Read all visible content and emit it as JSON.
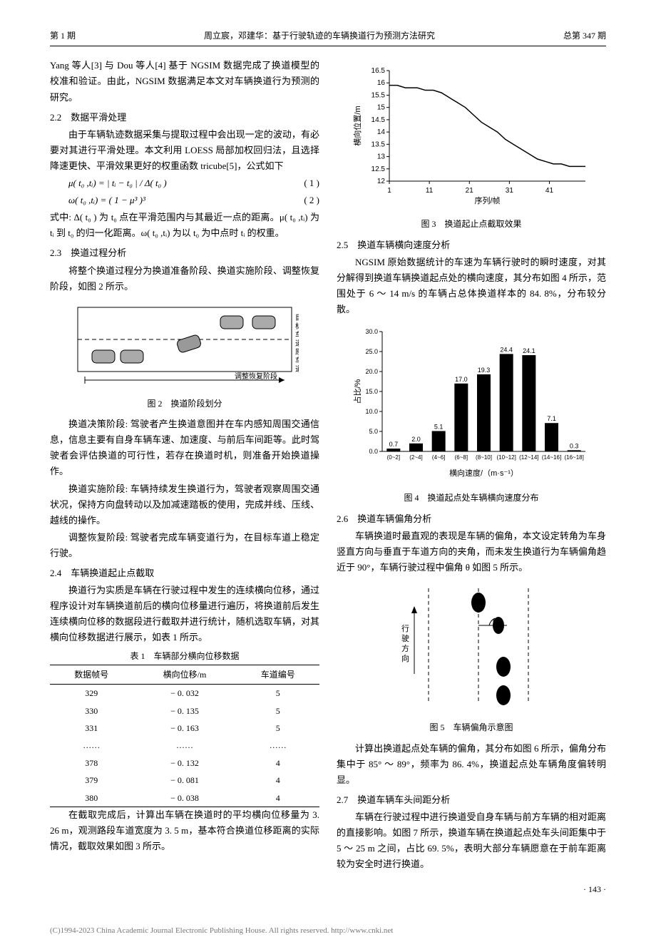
{
  "header": {
    "left": "第 1 期",
    "center": "周立宸，邓建华：基于行驶轨迹的车辆换道行为预测方法研究",
    "right": "总第 347 期"
  },
  "left_column": {
    "p1": "Yang 等人[3] 与 Dou 等人[4] 基于 NGSIM 数据完成了换道模型的校准和验证。由此，NGSIM 数据满足本文对车辆换道行为预测的研究。",
    "s22": "2.2　数据平滑处理",
    "p2": "由于车辆轨迹数据采集与提取过程中会出现一定的波动，有必要对其进行平滑处理。本文利用 LOESS 局部加权回归法，且选择降速更快、平滑效果更好的权重函数 tricube[5]，公式如下",
    "f1": "μ( t₀ ,tᵢ) = | tᵢ − t₀ | / Δ( t₀ )",
    "f1n": "( 1 )",
    "f2": "ω( t₀ ,tᵢ) = ( 1 − μ³ )³",
    "f2n": "( 2 )",
    "p3": "式中: Δ( t₀ ) 为 t₀ 点在平滑范围内与其最近一点的距离。μ( t₀ ,tᵢ) 为 tᵢ 到 t₀ 的归一化距离。ω( t₀ ,tᵢ) 为以 t₀ 为中点时 tᵢ 的权重。",
    "s23": "2.3　换道过程分析",
    "p4": "将整个换道过程分为换道准备阶段、换道实施阶段、调整恢复阶段，如图 2 所示。",
    "fig2_caption": "图 2　换道阶段划分",
    "p5": "换道决策阶段: 驾驶者产生换道意图并在车内感知周围交通信息，信息主要有自身车辆车速、加速度、与前后车间距等。此时驾驶者会评估换道的可行性，若存在换道时机，则准备开始换道操作。",
    "p6": "换道实施阶段: 车辆持续发生换道行为，驾驶者观察周围交通状况，保持方向盘转动以及加减速踏板的使用，完成并线、压线、越线的操作。",
    "p7": "调整恢复阶段: 驾驶者完成车辆变道行为，在目标车道上稳定行驶。",
    "s24": "2.4　车辆换道起止点截取",
    "p8": "换道行为实质是车辆在行驶过程中发生的连续横向位移，通过程序设计对车辆换道前后的横向位移量进行遍历，将换道前后发生连续横向位移的数据段进行截取并进行统计，随机选取车辆，对其横向位移数据进行展示，如表 1 所示。",
    "table1_caption": "表 1　车辆部分横向位移数据",
    "table1": {
      "columns": [
        "数据帧号",
        "横向位移/m",
        "车道编号"
      ],
      "rows": [
        [
          "329",
          "− 0. 032",
          "5"
        ],
        [
          "330",
          "− 0. 135",
          "5"
        ],
        [
          "331",
          "− 0. 163",
          "5"
        ],
        [
          "……",
          "……",
          "……"
        ],
        [
          "378",
          "− 0. 132",
          "4"
        ],
        [
          "379",
          "− 0. 081",
          "4"
        ],
        [
          "380",
          "− 0. 038",
          "4"
        ]
      ]
    },
    "p9": "在截取完成后，计算出车辆在换道时的平均横向位移量为 3. 26 m，观测路段车道宽度为 3. 5 m，基本符合换道位移距离的实际情况，截取效果如图 3 所示。"
  },
  "right_column": {
    "fig3": {
      "type": "line",
      "ylabel": "横向位置/m",
      "xlabel": "序列/帧",
      "xlim": [
        1,
        50
      ],
      "ylim": [
        12,
        16.5
      ],
      "xtick_labels": [
        "1",
        "11",
        "21",
        "31",
        "41"
      ],
      "ytick_labels": [
        "12",
        "12.5",
        "13",
        "13.5",
        "14",
        "14.5",
        "15",
        "15.5",
        "16",
        "16.5"
      ],
      "xticks": [
        1,
        11,
        21,
        31,
        41
      ],
      "yticks": [
        12,
        12.5,
        13,
        13.5,
        14,
        14.5,
        15,
        15.5,
        16,
        16.5
      ],
      "series_color": "#000000",
      "tick_fontsize": 10,
      "label_fontsize": 11,
      "data": [
        [
          1,
          15.9
        ],
        [
          3,
          15.9
        ],
        [
          5,
          15.8
        ],
        [
          8,
          15.8
        ],
        [
          10,
          15.7
        ],
        [
          12,
          15.7
        ],
        [
          14,
          15.6
        ],
        [
          16,
          15.4
        ],
        [
          18,
          15.2
        ],
        [
          20,
          15.0
        ],
        [
          22,
          14.7
        ],
        [
          24,
          14.4
        ],
        [
          26,
          14.2
        ],
        [
          28,
          14.0
        ],
        [
          30,
          13.7
        ],
        [
          32,
          13.5
        ],
        [
          34,
          13.3
        ],
        [
          36,
          13.1
        ],
        [
          38,
          12.9
        ],
        [
          40,
          12.8
        ],
        [
          42,
          12.7
        ],
        [
          44,
          12.7
        ],
        [
          46,
          12.6
        ],
        [
          48,
          12.6
        ],
        [
          50,
          12.6
        ]
      ]
    },
    "fig3_caption": "图 3　换道起止点截取效果",
    "s25": "2.5　换道车辆横向速度分析",
    "p1": "NGSIM 原始数据统计的车速为车辆行驶时的瞬时速度，对其分解得到换道车辆换道起点处的横向速度，其分布如图 4 所示，范围处于 6 ～ 14 m/s 的车辆占总体换道样本的 84. 8%，分布较分散。",
    "fig4": {
      "type": "bar",
      "ylabel": "占比/%",
      "xlabel": "横向速度/（m·s⁻¹）",
      "categories": [
        "(0~2]",
        "(2~4]",
        "(4~6]",
        "(6~8]",
        "(8~10]",
        "(10~12]",
        "(12~14]",
        "(14~16]",
        "(16~18]"
      ],
      "values": [
        0.7,
        2.0,
        5.1,
        17.0,
        19.3,
        24.4,
        24.1,
        7.1,
        0.3
      ],
      "ylim": [
        0,
        30
      ],
      "yticks": [
        0,
        5,
        10,
        15,
        20,
        25,
        30
      ],
      "ytick_labels": [
        "0.0",
        "5.0",
        "10.0",
        "15.0",
        "20.0",
        "25.0",
        "30.0"
      ],
      "bar_color": "#000000",
      "tick_fontsize": 9,
      "label_fontsize": 11,
      "bar_width": 0.6
    },
    "fig4_caption": "图 4　换道起点处车辆横向速度分布",
    "s26": "2.6　换道车辆偏角分析",
    "p2": "车辆换道时最直观的表现是车辆的偏角，本文设定转角为车身竖直方向与垂直于车道方向的夹角，而未发生换道行为车辆偏角趋近于 90°，车辆行驶过程中偏角 θ 如图 5 所示。",
    "fig5": {
      "arrow_label": "行驶方向",
      "angle_label": "θ",
      "lane_line_color": "#000000",
      "car_color": "#000000"
    },
    "fig5_caption": "图 5　车辆偏角示意图",
    "p3": "计算出换道起点处车辆的偏角，其分布如图 6 所示，偏角分布集中于 85° ～ 89°，频率为 86. 4%，换道起点处车辆角度偏转明显。",
    "s27": "2.7　换道车辆车头间距分析",
    "p4": "车辆在行驶过程中进行换道受自身车辆与前方车辆的相对距离的直接影响。如图 7 所示，换道车辆在换道起点处车头间距集中于 5 ～ 25 m 之间，占比 69. 5%，表明大部分车辆愿意在于前车距离较为安全时进行换道。"
  },
  "page_number": "· 143 ·",
  "footer": "(C)1994-2023 China Academic Journal Electronic Publishing House. All rights reserved.    http://www.cnki.net"
}
